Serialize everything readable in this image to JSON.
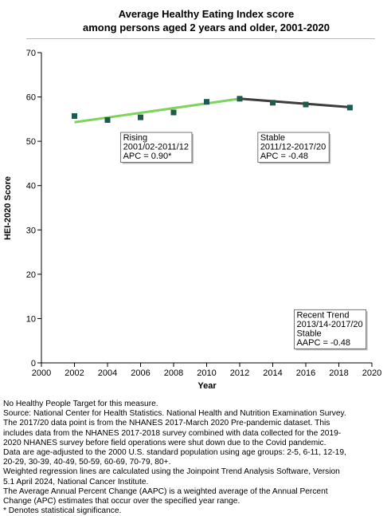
{
  "chart_data": {
    "type": "line",
    "title_lines": [
      "Average Healthy Eating Index score",
      "among  persons aged 2 years and older, 2001-2020"
    ],
    "xlabel": "Year",
    "ylabel": "HEI-2020 Score",
    "xlim": [
      2000,
      2020
    ],
    "ylim": [
      0,
      70
    ],
    "x_ticks": [
      "2000",
      "2002",
      "2004",
      "2006",
      "2008",
      "2010",
      "2012",
      "2014",
      "2016",
      "2018",
      "2020"
    ],
    "y_ticks": [
      "0",
      "10",
      "20",
      "30",
      "40",
      "50",
      "60",
      "70"
    ],
    "grid": false,
    "points": {
      "x": [
        2002,
        2004,
        2006,
        2008,
        2010,
        2012,
        2014,
        2016,
        2018.67
      ],
      "y": [
        55.7,
        54.8,
        55.4,
        56.5,
        58.9,
        59.6,
        58.7,
        58.3,
        57.6
      ]
    },
    "trend_segments": [
      {
        "name": "Rising",
        "x": [
          2002,
          2012
        ],
        "y": [
          54.3,
          59.6
        ],
        "color": "#7dd35c"
      },
      {
        "name": "Stable",
        "x": [
          2012,
          2018.67
        ],
        "y": [
          59.6,
          57.7
        ],
        "color": "#3d3d3d"
      }
    ],
    "marker_color": "#1e5a4e",
    "annotations": [
      {
        "lines": [
          "Rising",
          "2001/02-2011/12",
          "APC =  0.90*"
        ],
        "anchor": [
          2004.8,
          52
        ]
      },
      {
        "lines": [
          "Stable",
          "2011/12-2017/20",
          "APC = -0.48"
        ],
        "anchor": [
          2013.1,
          52
        ]
      },
      {
        "lines": [
          "Recent Trend",
          "2013/14-2017/20",
          "Stable",
          "AAPC = -0.48"
        ],
        "anchor": [
          2015.3,
          12
        ]
      }
    ]
  },
  "footnotes": [
    "No Healthy People Target for this measure.",
    "Source: National Center for Health Statistics. National Health and Nutrition Examination Survey.",
    "The 2017/20 data point is from the NHANES 2017-March 2020 Pre-pandemic dataset. This",
    "includes data from the NHANES 2017-2018 survey combined with data collected for the 2019-",
    "2020 NHANES survey before field operations were shut down due to the Covid pandemic.",
    "Data are age-adjusted to the 2000 U.S. standard population using age groups: 2-5, 6-11, 12-19,",
    "20-29, 30-39, 40-49, 50-59, 60-69, 70-79, 80+.",
    "Weighted regression lines are calculated using the Joinpoint Trend Analysis Software, Version",
    "5.1 April 2024, National Cancer Institute.",
    "The Average Annual Percent Change (AAPC) is a weighted average of the Annual Percent",
    "Change (APC) estimates that occur over the specified year range.",
    "* Denotes statistical significance."
  ]
}
